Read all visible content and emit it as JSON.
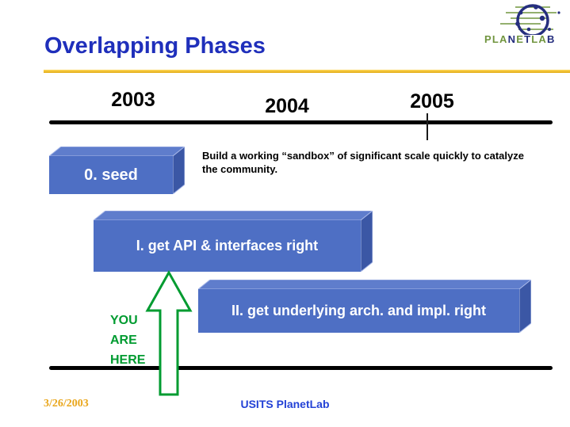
{
  "slide": {
    "title": "Overlapping Phases",
    "footer": {
      "date": "3/26/2003",
      "venue": "USITS PlanetLab"
    }
  },
  "logo": {
    "name": "PlanetLab",
    "icon": "globe-network-icon",
    "wordmark": [
      {
        "char": "P",
        "tone": "green"
      },
      {
        "char": "L",
        "tone": "green"
      },
      {
        "char": "A",
        "tone": "green"
      },
      {
        "char": "N",
        "tone": "navy"
      },
      {
        "char": "E",
        "tone": "green"
      },
      {
        "char": "T",
        "tone": "navy"
      },
      {
        "char": "L",
        "tone": "green"
      },
      {
        "char": "A",
        "tone": "green"
      },
      {
        "char": "B",
        "tone": "navy"
      }
    ]
  },
  "timeline": {
    "years": [
      "2003",
      "2004",
      "2005"
    ]
  },
  "phases": [
    {
      "label": "0. seed"
    },
    {
      "label": "I. get API & interfaces right"
    },
    {
      "label": "II. get underlying arch. and impl. right"
    }
  ],
  "annotations": {
    "sandbox_note": "Build a working “sandbox” of significant scale quickly to catalyze the community.",
    "you_are_here": "YOU\nARE\nHERE"
  },
  "colors": {
    "title_blue": "#1F2FBB",
    "gold_line": "#E2A90F",
    "box_front": "#4E6FC4",
    "box_top": "#5F7DCC",
    "box_side": "#3B57A5",
    "box_edge": "#A8B8E8",
    "box_text": "#FFFFFF",
    "green": "#009B30",
    "timeline_black": "#000000",
    "gold_text": "#E9A61B",
    "footer_blue": "#2442D6",
    "logo_navy": "#252E7E",
    "logo_green": "#71953F"
  }
}
